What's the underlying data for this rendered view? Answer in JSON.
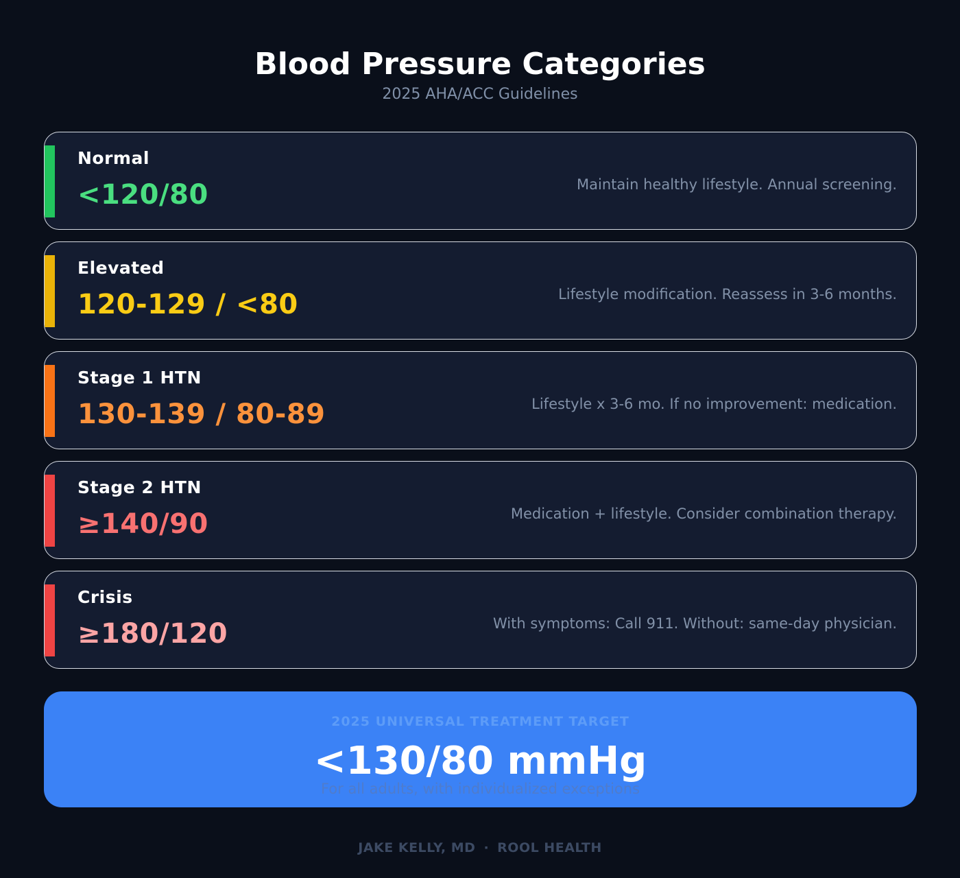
{
  "header": {
    "title": "Blood Pressure Categories",
    "subtitle": "2025 AHA/ACC Guidelines"
  },
  "categories": [
    {
      "label": "Normal",
      "range": "<120/80",
      "note": "Maintain healthy lifestyle. Annual screening.",
      "accent_color": "#22c55e",
      "range_color": "#4ade80"
    },
    {
      "label": "Elevated",
      "range": "120-129 / <80",
      "note": "Lifestyle modification. Reassess in 3-6 months.",
      "accent_color": "#eab308",
      "range_color": "#facc15"
    },
    {
      "label": "Stage 1 HTN",
      "range": "130-139 / 80-89",
      "note": "Lifestyle x 3-6 mo. If no improvement: medication.",
      "accent_color": "#f97316",
      "range_color": "#fb923c"
    },
    {
      "label": "Stage 2 HTN",
      "range": "≥140/90",
      "note": "Medication + lifestyle. Consider combination therapy.",
      "accent_color": "#ef4444",
      "range_color": "#f87171"
    },
    {
      "label": "Crisis",
      "range": "≥180/120",
      "note": "With symptoms: Call 911. Without: same-day physician.",
      "accent_color": "#ef4444",
      "range_color": "#fca5a5"
    }
  ],
  "target": {
    "eyebrow": "2025 UNIVERSAL TREATMENT TARGET",
    "value": "<130/80 mmHg",
    "caption": "For all adults, with individualized exceptions",
    "background_color": "#3b82f6"
  },
  "footer": {
    "author": "JAKE KELLY, MD",
    "separator": "·",
    "organization": "ROOL HEALTH"
  }
}
